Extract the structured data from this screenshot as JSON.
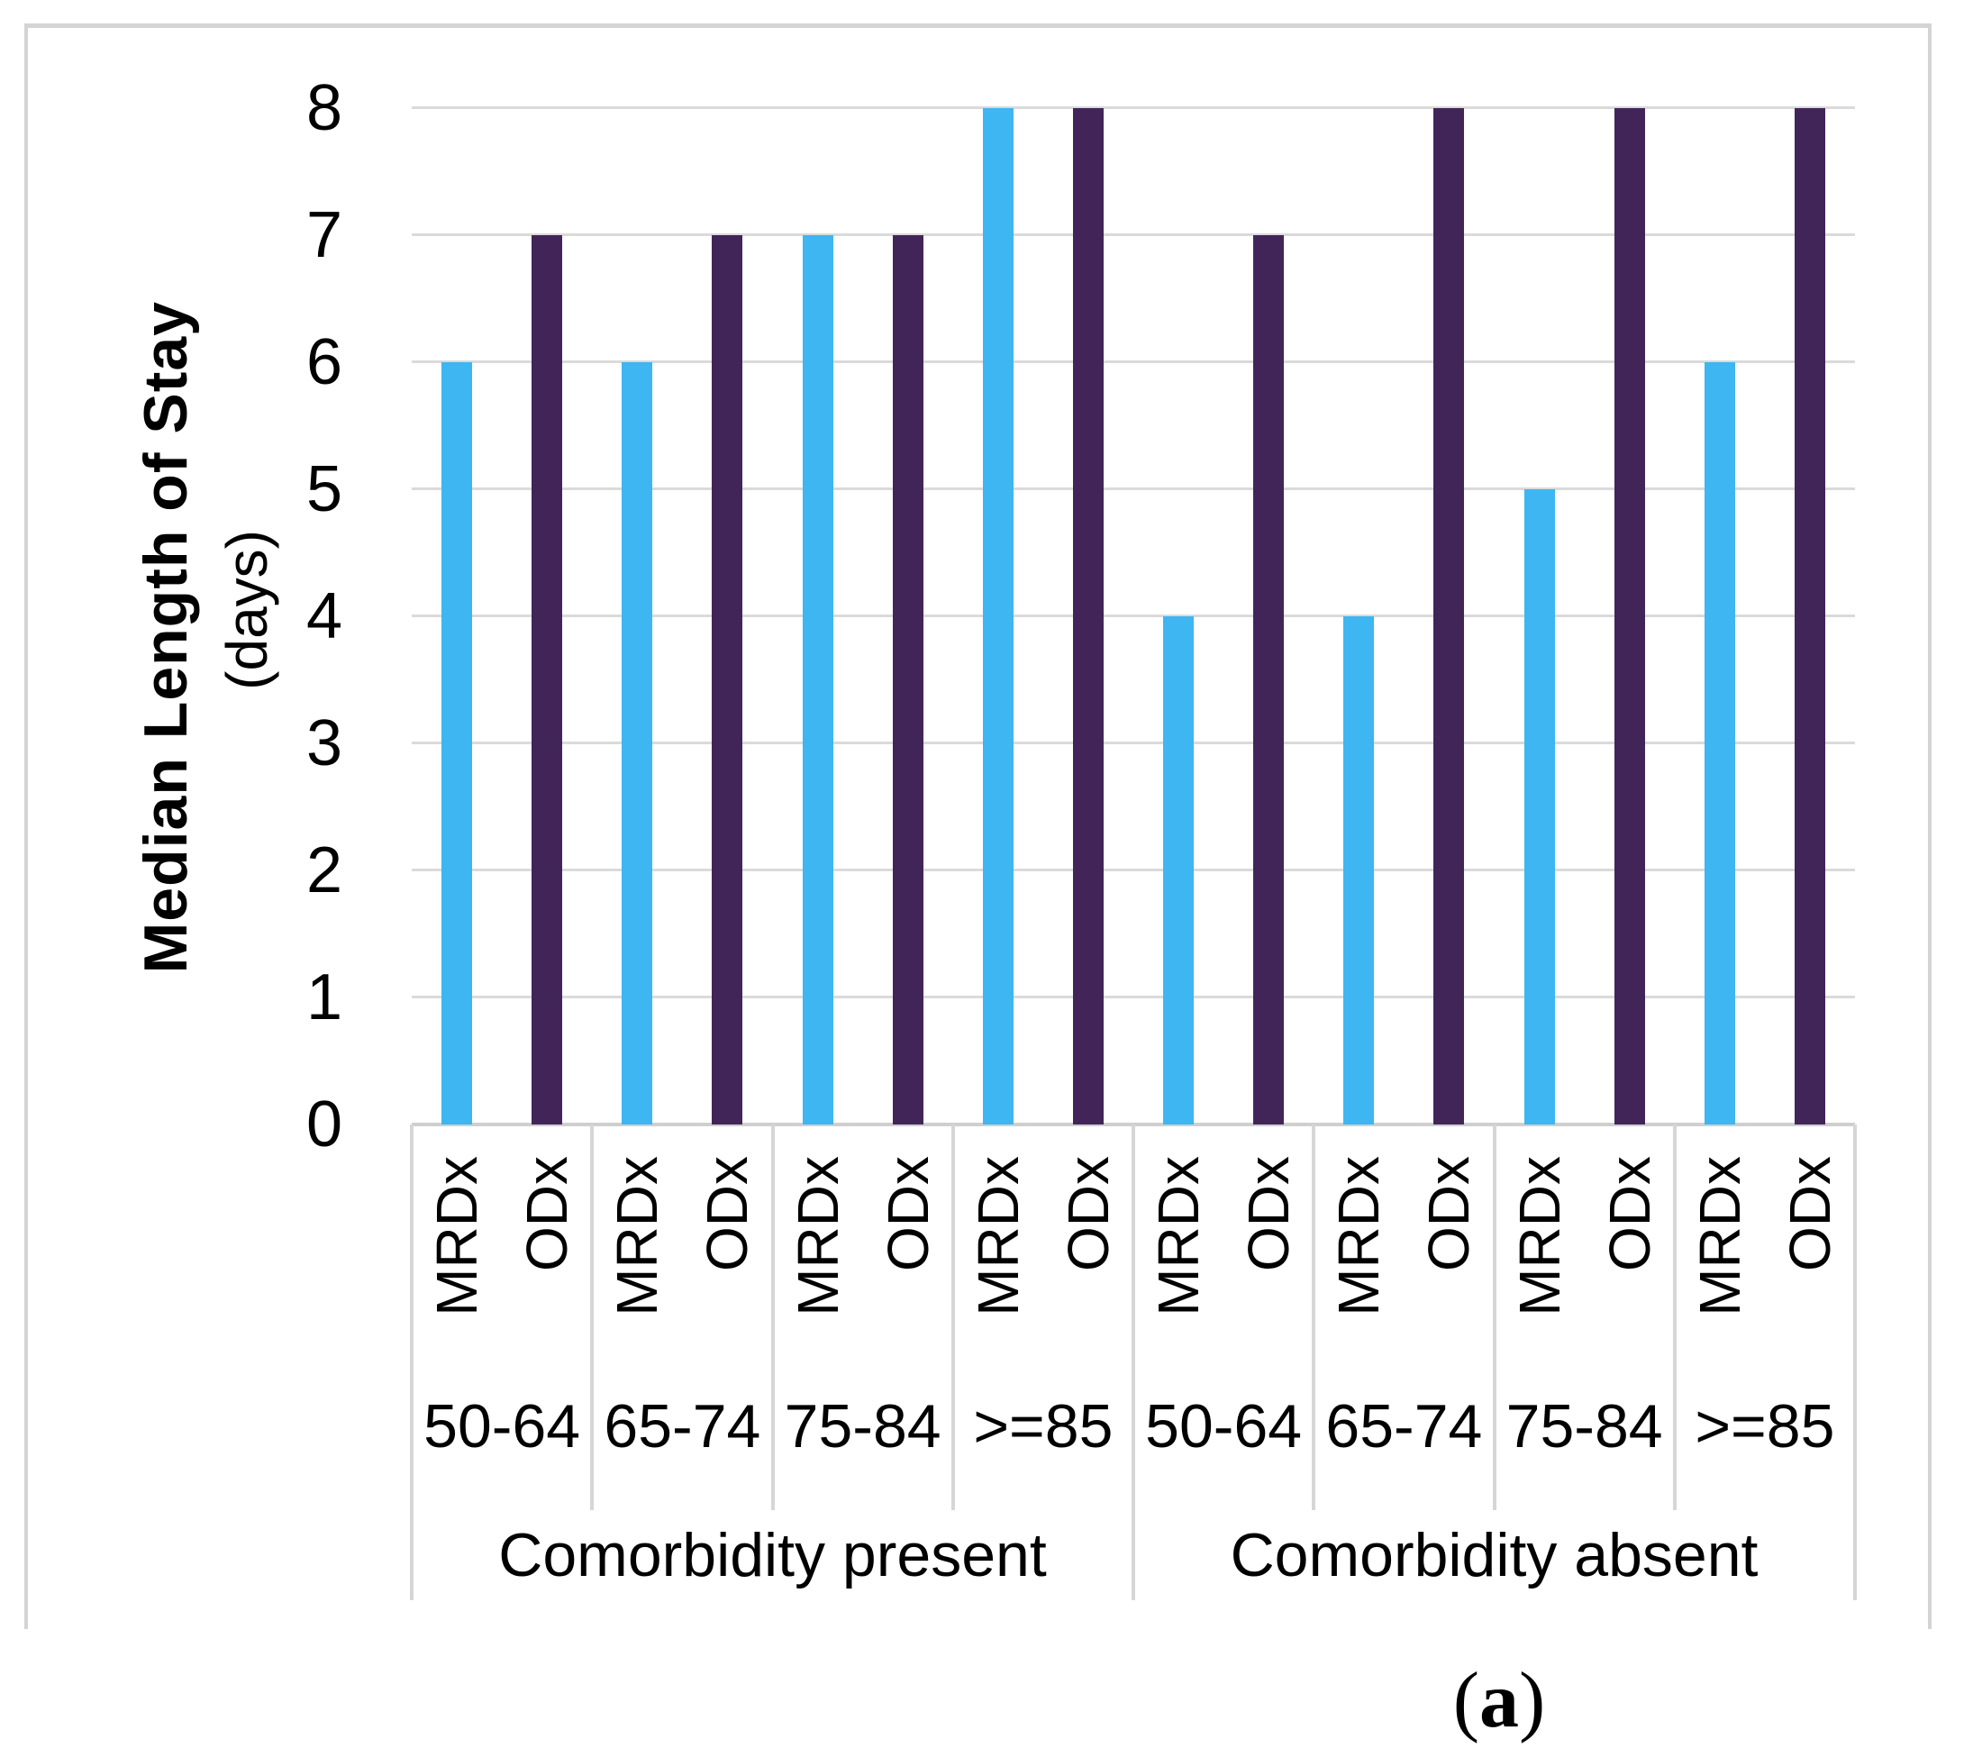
{
  "figure": {
    "caption_open": "(",
    "caption_letter": "a",
    "caption_close": ")"
  },
  "chart_data": {
    "type": "bar",
    "title": "",
    "ylabel": "Median Length of Stay",
    "ylabel_unit": "(days)",
    "xlabel": "",
    "ylim": [
      0,
      8
    ],
    "yticks": [
      0,
      1,
      2,
      3,
      4,
      5,
      6,
      7,
      8
    ],
    "grid": "horizontal",
    "legend_position": "none",
    "bar_series_names": [
      "MRDx",
      "ODx"
    ],
    "colors": {
      "MRDx": "#3DB6F1",
      "ODx": "#422558",
      "gridline": "#DADADA",
      "axis_table_lines": "#D6D6D6"
    },
    "groups": [
      {
        "label": "Comorbidity present",
        "categories": [
          "50-64",
          "65-74",
          "75-84",
          ">=85"
        ],
        "series": [
          {
            "name": "MRDx",
            "values": [
              6,
              6,
              7,
              8
            ]
          },
          {
            "name": "ODx",
            "values": [
              7,
              7,
              7,
              8
            ]
          }
        ]
      },
      {
        "label": "Comorbidity absent",
        "categories": [
          "50-64",
          "65-74",
          "75-84",
          ">=85"
        ],
        "series": [
          {
            "name": "MRDx",
            "values": [
              4,
              4,
              5,
              6
            ]
          },
          {
            "name": "ODx",
            "values": [
              7,
              8,
              8,
              8
            ]
          }
        ]
      }
    ]
  }
}
